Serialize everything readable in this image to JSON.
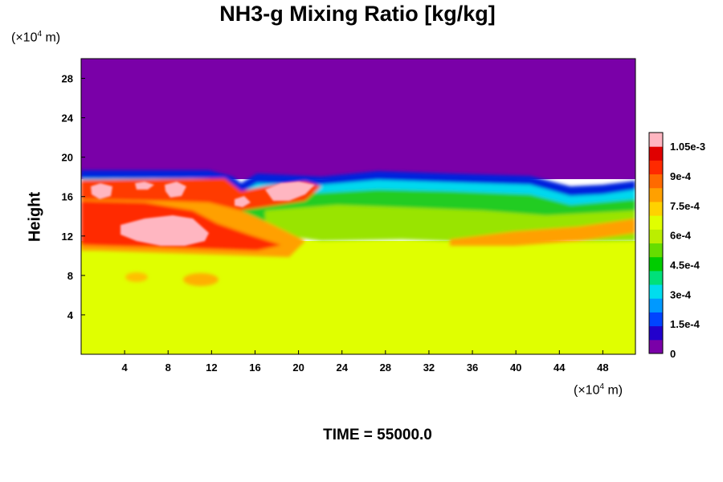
{
  "chart_data": {
    "type": "heatmap",
    "title": "NH3-g Mixing Ratio [kg/kg]",
    "ylabel": "Height",
    "xlabel": "",
    "x_unit": {
      "prefix": "(×10",
      "exp": "4",
      "suffix": " m)"
    },
    "y_unit": {
      "prefix": "(×10",
      "exp": "4",
      "suffix": " m)"
    },
    "time_label": "TIME = 55000.0",
    "xlim": [
      0,
      51
    ],
    "ylim": [
      0,
      30
    ],
    "xticks": [
      "4",
      "8",
      "12",
      "16",
      "20",
      "24",
      "28",
      "32",
      "36",
      "40",
      "44",
      "48"
    ],
    "yticks": [
      "4",
      "8",
      "12",
      "16",
      "20",
      "24",
      "28"
    ],
    "colorbar": {
      "range": [
        0,
        0.00112
      ],
      "labels": [
        "0",
        "1.5e-4",
        "3e-4",
        "4.5e-4",
        "6e-4",
        "7.5e-4",
        "9e-4",
        "1.05e-3"
      ],
      "colors": [
        "#7a00a8",
        "#2200cc",
        "#0044ff",
        "#0099ff",
        "#00ddee",
        "#00e07a",
        "#00cc00",
        "#66dd00",
        "#bbee00",
        "#e0ff00",
        "#ffd200",
        "#ffa000",
        "#ff6a00",
        "#ff2a00",
        "#e00000",
        "#ffb6c1"
      ]
    },
    "regions": {
      "lower_layer": {
        "y_range": [
          0,
          11
        ],
        "value": 0.00075,
        "color": "#e0ff00"
      },
      "upper_layer": {
        "y_range": [
          18,
          30
        ],
        "value": 0.0,
        "color": "#7a00a8"
      },
      "mid_layer": {
        "y_range": [
          11,
          18
        ],
        "value_range": [
          0.0003,
          0.00112
        ]
      }
    }
  }
}
